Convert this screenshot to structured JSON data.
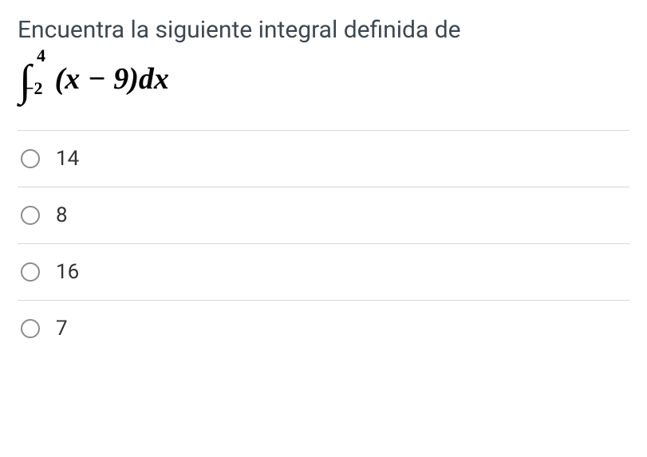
{
  "question": {
    "prompt": "Encuentra la siguiente integral definida de",
    "formula": {
      "upper_limit": "4",
      "lower_limit": "−2",
      "expression": "(x − 9)dx"
    }
  },
  "options": [
    {
      "label": "14",
      "selected": false
    },
    {
      "label": "8",
      "selected": false
    },
    {
      "label": "16",
      "selected": false
    },
    {
      "label": "7",
      "selected": false
    }
  ],
  "style": {
    "text_color": "#3d4852",
    "option_color": "#333333",
    "divider_color": "#d7d7d7",
    "radio_border_color": "#8b8b8b",
    "background": "#ffffff"
  }
}
